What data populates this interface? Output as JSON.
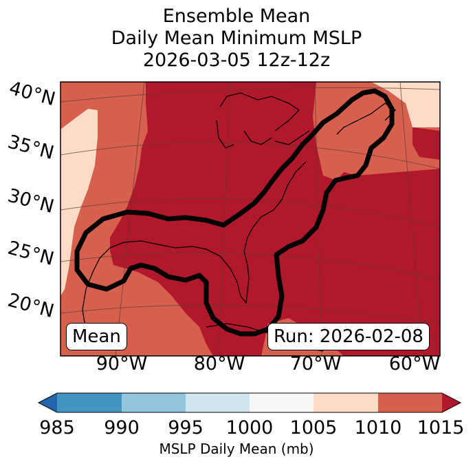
{
  "title": {
    "line1": "Ensemble Mean",
    "line2": "Daily Mean Minimum MSLP",
    "line3": "2026-03-05 12z-12z"
  },
  "map": {
    "lat_labels": [
      "40°N",
      "35°N",
      "30°N",
      "25°N",
      "20°N"
    ],
    "lon_labels": [
      "90°W",
      "80°W",
      "70°W",
      "60°W"
    ],
    "left_box": "Mean",
    "right_box": "Run: 2026-02-08",
    "field_colors": {
      "c1005_1010": "#fddbc7",
      "c1010_1015": "#d6604d",
      "c1015_plus": "#b2182b"
    },
    "contour_color": "#000000"
  },
  "colorbar": {
    "levels": [
      "985",
      "990",
      "995",
      "1000",
      "1005",
      "1010",
      "1015"
    ],
    "colors": [
      "#2166ac",
      "#4393c3",
      "#92c5de",
      "#d1e5f0",
      "#f7f7f7",
      "#fddbc7",
      "#d6604d",
      "#b2182b"
    ],
    "label": "MSLP Daily Mean (mb)"
  }
}
